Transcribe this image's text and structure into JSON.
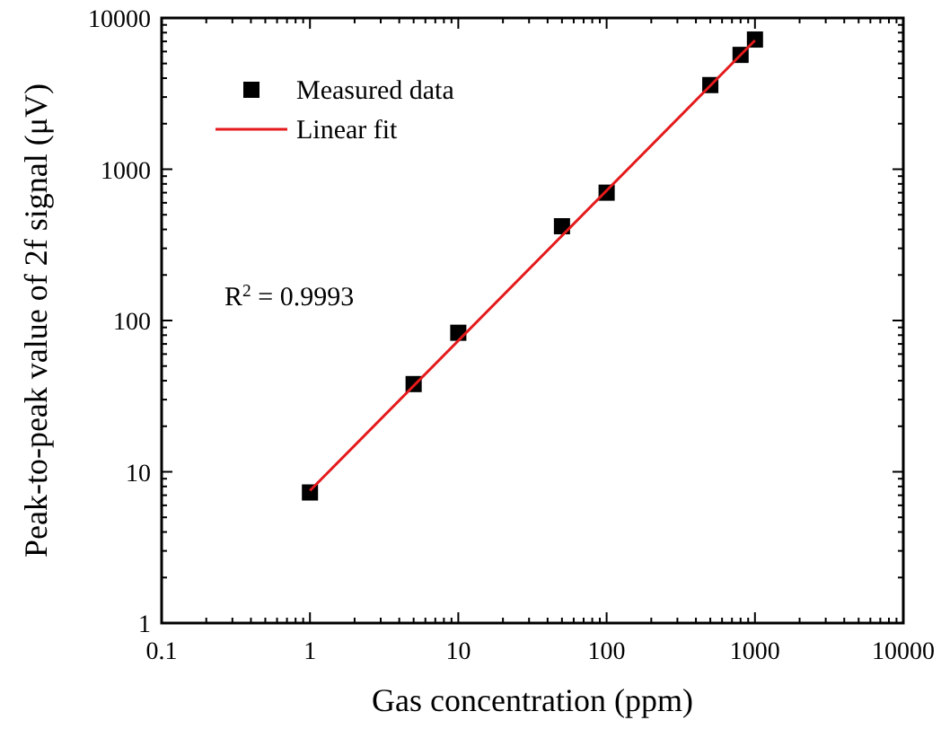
{
  "chart_data": {
    "type": "scatter",
    "xlabel": "Gas concentration (ppm)",
    "ylabel": "Peak-to-peak value of 2f signal (μV)",
    "x": [
      1,
      5,
      10,
      50,
      100,
      500,
      800,
      1000
    ],
    "series": [
      {
        "name": "Measured data",
        "color": "#000000",
        "marker": "square",
        "values": [
          7.3,
          38,
          83,
          420,
          700,
          3600,
          5700,
          7200
        ]
      },
      {
        "name": "Linear fit",
        "color": "#e41a1c",
        "type": "line",
        "marker": "none",
        "line_style": "solid",
        "x": [
          1,
          1000
        ],
        "values": [
          7.5,
          7100
        ]
      }
    ],
    "log": "xy",
    "xlim": [
      0.1,
      10000
    ],
    "ylim": [
      1,
      10000
    ],
    "xticks": [
      {
        "value": 0.1,
        "label": "0.1"
      },
      1,
      10,
      100,
      1000,
      10000
    ],
    "yticks": [
      1,
      10,
      100,
      1000,
      10000
    ],
    "legend": "top left",
    "grid": false,
    "annotations": [
      "R$^{2}$ = 0.9993"
    ]
  }
}
